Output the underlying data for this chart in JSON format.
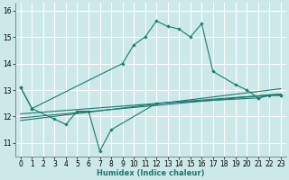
{
  "title": "",
  "xlabel": "Humidex (Indice chaleur)",
  "background_color": "#cce8e8",
  "grid_color": "#ffffff",
  "line_color": "#1a7a6e",
  "xlim": [
    -0.5,
    23.5
  ],
  "ylim": [
    10.5,
    16.3
  ],
  "xticks": [
    0,
    1,
    2,
    3,
    4,
    5,
    6,
    7,
    8,
    9,
    10,
    11,
    12,
    13,
    14,
    15,
    16,
    17,
    18,
    19,
    20,
    21,
    22,
    23
  ],
  "yticks": [
    11,
    12,
    13,
    14,
    15,
    16
  ],
  "series": [
    {
      "x": [
        0,
        1,
        3,
        4,
        5,
        6,
        7,
        8,
        12,
        21,
        22,
        23
      ],
      "y": [
        13.1,
        12.3,
        11.9,
        11.7,
        12.2,
        12.2,
        10.7,
        11.5,
        12.5,
        12.7,
        12.8,
        12.8
      ],
      "marker": true
    },
    {
      "x": [
        0,
        1,
        9,
        10,
        11,
        12,
        13,
        14,
        15,
        16,
        17,
        19,
        20,
        21,
        22,
        23
      ],
      "y": [
        13.1,
        12.3,
        14.0,
        14.7,
        15.0,
        15.6,
        15.4,
        15.3,
        15.0,
        15.5,
        13.7,
        13.2,
        13.0,
        12.7,
        12.8,
        12.8
      ],
      "marker": true
    },
    {
      "x": [
        0,
        23
      ],
      "y": [
        11.85,
        13.05
      ],
      "marker": false
    },
    {
      "x": [
        0,
        23
      ],
      "y": [
        11.95,
        12.85
      ],
      "marker": false
    },
    {
      "x": [
        0,
        23
      ],
      "y": [
        12.1,
        12.85
      ],
      "marker": false
    }
  ]
}
